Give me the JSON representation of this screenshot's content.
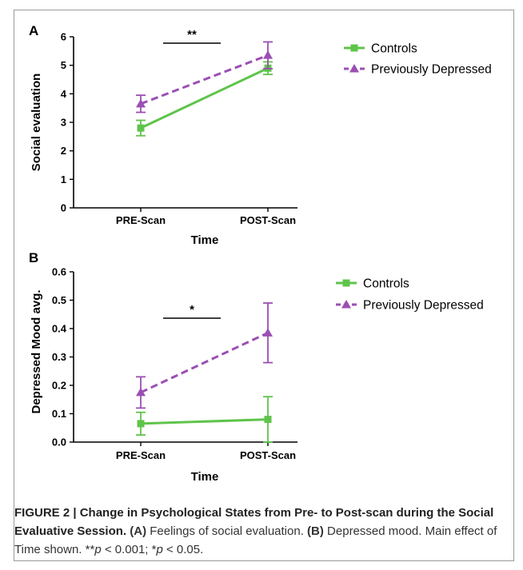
{
  "colors": {
    "controls": "#5fc44a",
    "depressed": "#9b4fb3"
  },
  "chart_data": [
    {
      "panel": "A",
      "type": "line",
      "categories": [
        "PRE-Scan",
        "POST-Scan"
      ],
      "xlabel": "Time",
      "ylabel": "Social evaluation",
      "ylim": [
        0,
        6
      ],
      "yticks": [
        "0",
        "1",
        "2",
        "3",
        "4",
        "5",
        "6"
      ],
      "series": [
        {
          "name": "Controls",
          "values": [
            2.8,
            4.9
          ],
          "errors": [
            0.27,
            0.22
          ],
          "marker": "square",
          "style": "solid"
        },
        {
          "name": "Previously Depressed",
          "values": [
            3.65,
            5.35
          ],
          "errors": [
            0.3,
            0.47
          ],
          "marker": "triangle",
          "style": "dashed"
        }
      ],
      "significance": {
        "label": "**",
        "between": [
          "PRE-Scan",
          "POST-Scan"
        ]
      },
      "legend_position": "top-right"
    },
    {
      "panel": "B",
      "type": "line",
      "categories": [
        "PRE-Scan",
        "POST-Scan"
      ],
      "xlabel": "Time",
      "ylabel": "Depressed Mood avg.",
      "ylim": [
        0,
        0.6
      ],
      "yticks": [
        "0.0",
        "0.1",
        "0.2",
        "0.3",
        "0.4",
        "0.5",
        "0.6"
      ],
      "series": [
        {
          "name": "Controls",
          "values": [
            0.065,
            0.08
          ],
          "errors": [
            0.04,
            0.08
          ],
          "marker": "square",
          "style": "solid"
        },
        {
          "name": "Previously Depressed",
          "values": [
            0.175,
            0.385
          ],
          "errors": [
            0.055,
            0.105
          ],
          "marker": "triangle",
          "style": "dashed"
        }
      ],
      "significance": {
        "label": "*",
        "between": [
          "PRE-Scan",
          "POST-Scan"
        ]
      },
      "legend_position": "top-right"
    }
  ],
  "caption": {
    "title": "FIGURE 2 | Change in Psychological States from Pre- to Post-scan during the Social Evaluative Session.",
    "a_label": "(A)",
    "a_text": "Feelings of social evaluation.",
    "b_label": "(B)",
    "b_text": "Depressed mood. Main effect of Time shown. **",
    "p1": "p",
    "mid": " < 0.001; *",
    "p2": "p",
    "end": " < 0.05."
  }
}
